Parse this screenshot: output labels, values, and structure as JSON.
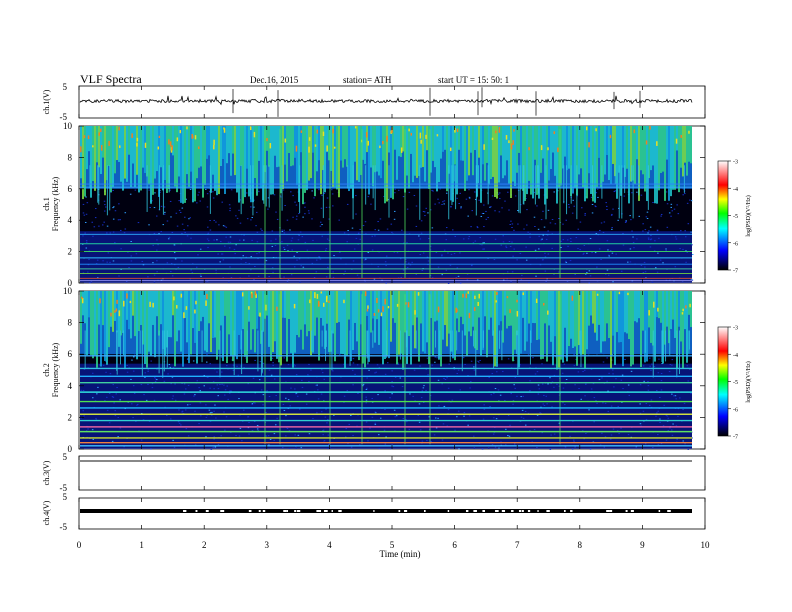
{
  "header": {
    "title": "VLF  Spectra",
    "date": "Dec.16, 2015",
    "station": "station= ATH",
    "start": "start  UT  =    15: 50: 1"
  },
  "colors": {
    "background": "#ffffff",
    "axis": "#000000",
    "spectrogram_base": "#000000",
    "colorbar": [
      "#000000",
      "#0000ff",
      "#00ffff",
      "#00ff00",
      "#ffff00",
      "#ff0000",
      "#ffffff"
    ]
  },
  "chart_data": [
    {
      "type": "line",
      "panel": "ch1-waveform",
      "ylabel": "ch.1(V)",
      "yticks": [
        "5",
        "-5"
      ],
      "ylim": [
        -5,
        5
      ],
      "xlim": [
        0,
        10
      ],
      "baseline": 0,
      "notes": "noisy waveform near 0 V with sferic spikes"
    },
    {
      "type": "heatmap",
      "panel": "ch1-spectrogram",
      "ylabel": "ch.1\nFrequency  (kHz)",
      "ylabel_lines": [
        "ch.1",
        "Frequency  (kHz)"
      ],
      "yticks": [
        "0",
        "2",
        "4",
        "6",
        "8",
        "10"
      ],
      "ylim": [
        0,
        10
      ],
      "xlim": [
        0,
        9.8
      ],
      "colorbar": {
        "label": "log(PSD)(V²/Hz)",
        "ticks": [
          "-3",
          "-4",
          "-5",
          "-6",
          "-7"
        ],
        "range": [
          -7,
          -3
        ]
      },
      "notes": "intense broadband sferics above ~6 kHz, horizontal interference lines below 6 kHz"
    },
    {
      "type": "heatmap",
      "panel": "ch2-spectrogram",
      "ylabel": "ch.2\nFrequency  (kHz)",
      "ylabel_lines": [
        "ch.2",
        "Frequency  (kHz)"
      ],
      "yticks": [
        "0",
        "2",
        "4",
        "6",
        "8",
        "10"
      ],
      "ylim": [
        0,
        10
      ],
      "xlim": [
        0,
        9.8
      ],
      "colorbar": {
        "label": "log(PSD)(V²/Hz)",
        "ticks": [
          "-3",
          "-4",
          "-5",
          "-6",
          "-7"
        ],
        "range": [
          -7,
          -3
        ]
      },
      "notes": "similar to ch.1 with stronger interference bands 0-5 kHz"
    },
    {
      "type": "line",
      "panel": "ch3-waveform",
      "ylabel": "ch.3(V)",
      "yticks": [
        "5",
        "-5"
      ],
      "ylim": [
        -5,
        5
      ],
      "xlim": [
        0,
        10
      ],
      "baseline": 4.3,
      "notes": "flat trace near top"
    },
    {
      "type": "line",
      "panel": "ch4-waveform",
      "ylabel": "ch.4(V)",
      "yticks": [
        "5",
        "-5"
      ],
      "ylim": [
        -5,
        5
      ],
      "xlim": [
        0,
        10
      ],
      "baseline": 0,
      "notes": "thick black band near 0 V with gaps"
    }
  ],
  "xaxis": {
    "label": "Time  (min)",
    "ticks": [
      "0",
      "1",
      "2",
      "3",
      "4",
      "5",
      "6",
      "7",
      "8",
      "9",
      "10"
    ],
    "range": [
      0,
      10
    ]
  }
}
